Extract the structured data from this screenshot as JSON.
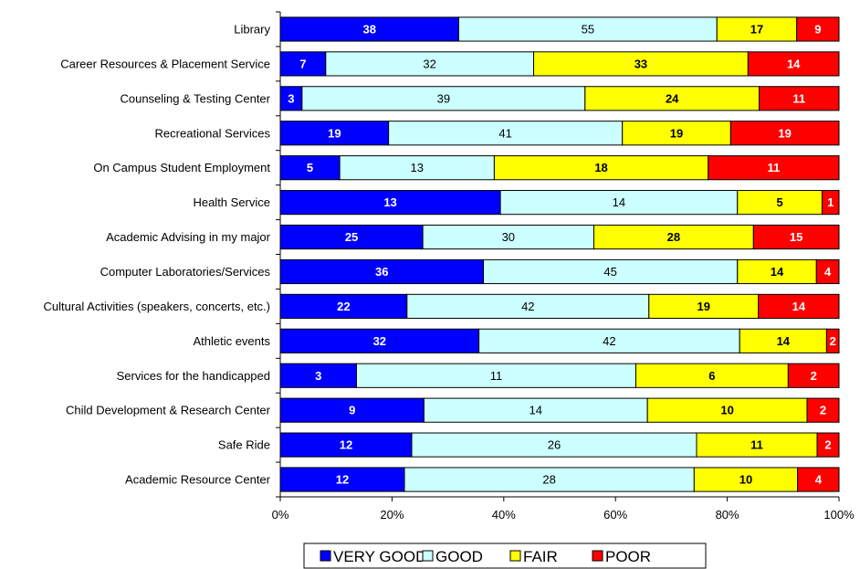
{
  "chart_data": {
    "type": "bar",
    "orientation": "horizontal",
    "stacked": "percent",
    "categories": [
      "Library",
      "Career Resources & Placement Service",
      "Counseling & Testing Center",
      "Recreational Services",
      "On Campus Student Employment",
      "Health Service",
      "Academic Advising in my major",
      "Computer Laboratories/Services",
      "Cultural Activities (speakers, concerts, etc.)",
      "Athletic events",
      "Services for the handicapped",
      "Child Development & Research Center",
      "Safe Ride",
      "Academic Resource Center"
    ],
    "series": [
      {
        "name": "VERY GOOD",
        "color": "#0000FF",
        "label_color": "#FFFFFF",
        "label_bold": true,
        "values": [
          38,
          7,
          3,
          19,
          5,
          13,
          25,
          36,
          22,
          32,
          3,
          9,
          12,
          12
        ]
      },
      {
        "name": "GOOD",
        "color": "#CCFFFF",
        "label_color": "#000000",
        "label_bold": false,
        "values": [
          55,
          32,
          39,
          41,
          13,
          14,
          30,
          45,
          42,
          42,
          11,
          14,
          26,
          28
        ]
      },
      {
        "name": "FAIR",
        "color": "#FFFF00",
        "label_color": "#000000",
        "label_bold": true,
        "values": [
          17,
          33,
          24,
          19,
          18,
          5,
          28,
          14,
          19,
          14,
          6,
          10,
          11,
          10
        ]
      },
      {
        "name": "POOR",
        "color": "#FF0000",
        "label_color": "#FFFFFF",
        "label_bold": true,
        "values": [
          9,
          14,
          11,
          19,
          11,
          1,
          15,
          4,
          14,
          2,
          2,
          2,
          2,
          4
        ]
      }
    ],
    "x_ticks": [
      "0%",
      "20%",
      "40%",
      "60%",
      "80%",
      "100%"
    ],
    "xlim": [
      0,
      100
    ],
    "grid": false,
    "legend_position": "bottom"
  }
}
